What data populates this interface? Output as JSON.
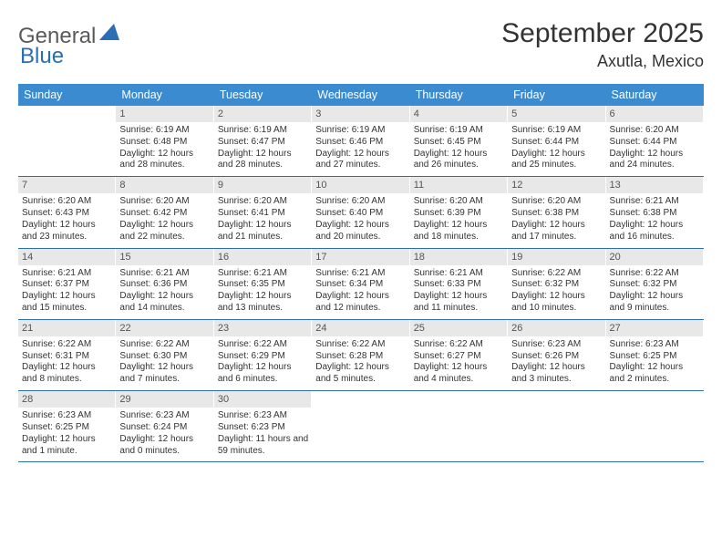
{
  "logo": {
    "general": "General",
    "blue": "Blue"
  },
  "header": {
    "month_title": "September 2025",
    "location": "Axutla, Mexico"
  },
  "colors": {
    "header_bg": "#3b8bd0",
    "header_text": "#ffffff",
    "daybar_bg": "#e8e8e8",
    "row_border": "#2f6fa8",
    "text": "#333333",
    "logo_gray": "#5a5a5a",
    "logo_blue": "#2a6fb5"
  },
  "weekdays": [
    "Sunday",
    "Monday",
    "Tuesday",
    "Wednesday",
    "Thursday",
    "Friday",
    "Saturday"
  ],
  "weeks": [
    [
      {
        "empty": true
      },
      {
        "day": "1",
        "sunrise": "Sunrise: 6:19 AM",
        "sunset": "Sunset: 6:48 PM",
        "daylight": "Daylight: 12 hours and 28 minutes."
      },
      {
        "day": "2",
        "sunrise": "Sunrise: 6:19 AM",
        "sunset": "Sunset: 6:47 PM",
        "daylight": "Daylight: 12 hours and 28 minutes."
      },
      {
        "day": "3",
        "sunrise": "Sunrise: 6:19 AM",
        "sunset": "Sunset: 6:46 PM",
        "daylight": "Daylight: 12 hours and 27 minutes."
      },
      {
        "day": "4",
        "sunrise": "Sunrise: 6:19 AM",
        "sunset": "Sunset: 6:45 PM",
        "daylight": "Daylight: 12 hours and 26 minutes."
      },
      {
        "day": "5",
        "sunrise": "Sunrise: 6:19 AM",
        "sunset": "Sunset: 6:44 PM",
        "daylight": "Daylight: 12 hours and 25 minutes."
      },
      {
        "day": "6",
        "sunrise": "Sunrise: 6:20 AM",
        "sunset": "Sunset: 6:44 PM",
        "daylight": "Daylight: 12 hours and 24 minutes."
      }
    ],
    [
      {
        "day": "7",
        "sunrise": "Sunrise: 6:20 AM",
        "sunset": "Sunset: 6:43 PM",
        "daylight": "Daylight: 12 hours and 23 minutes."
      },
      {
        "day": "8",
        "sunrise": "Sunrise: 6:20 AM",
        "sunset": "Sunset: 6:42 PM",
        "daylight": "Daylight: 12 hours and 22 minutes."
      },
      {
        "day": "9",
        "sunrise": "Sunrise: 6:20 AM",
        "sunset": "Sunset: 6:41 PM",
        "daylight": "Daylight: 12 hours and 21 minutes."
      },
      {
        "day": "10",
        "sunrise": "Sunrise: 6:20 AM",
        "sunset": "Sunset: 6:40 PM",
        "daylight": "Daylight: 12 hours and 20 minutes."
      },
      {
        "day": "11",
        "sunrise": "Sunrise: 6:20 AM",
        "sunset": "Sunset: 6:39 PM",
        "daylight": "Daylight: 12 hours and 18 minutes."
      },
      {
        "day": "12",
        "sunrise": "Sunrise: 6:20 AM",
        "sunset": "Sunset: 6:38 PM",
        "daylight": "Daylight: 12 hours and 17 minutes."
      },
      {
        "day": "13",
        "sunrise": "Sunrise: 6:21 AM",
        "sunset": "Sunset: 6:38 PM",
        "daylight": "Daylight: 12 hours and 16 minutes."
      }
    ],
    [
      {
        "day": "14",
        "sunrise": "Sunrise: 6:21 AM",
        "sunset": "Sunset: 6:37 PM",
        "daylight": "Daylight: 12 hours and 15 minutes."
      },
      {
        "day": "15",
        "sunrise": "Sunrise: 6:21 AM",
        "sunset": "Sunset: 6:36 PM",
        "daylight": "Daylight: 12 hours and 14 minutes."
      },
      {
        "day": "16",
        "sunrise": "Sunrise: 6:21 AM",
        "sunset": "Sunset: 6:35 PM",
        "daylight": "Daylight: 12 hours and 13 minutes."
      },
      {
        "day": "17",
        "sunrise": "Sunrise: 6:21 AM",
        "sunset": "Sunset: 6:34 PM",
        "daylight": "Daylight: 12 hours and 12 minutes."
      },
      {
        "day": "18",
        "sunrise": "Sunrise: 6:21 AM",
        "sunset": "Sunset: 6:33 PM",
        "daylight": "Daylight: 12 hours and 11 minutes."
      },
      {
        "day": "19",
        "sunrise": "Sunrise: 6:22 AM",
        "sunset": "Sunset: 6:32 PM",
        "daylight": "Daylight: 12 hours and 10 minutes."
      },
      {
        "day": "20",
        "sunrise": "Sunrise: 6:22 AM",
        "sunset": "Sunset: 6:32 PM",
        "daylight": "Daylight: 12 hours and 9 minutes."
      }
    ],
    [
      {
        "day": "21",
        "sunrise": "Sunrise: 6:22 AM",
        "sunset": "Sunset: 6:31 PM",
        "daylight": "Daylight: 12 hours and 8 minutes."
      },
      {
        "day": "22",
        "sunrise": "Sunrise: 6:22 AM",
        "sunset": "Sunset: 6:30 PM",
        "daylight": "Daylight: 12 hours and 7 minutes."
      },
      {
        "day": "23",
        "sunrise": "Sunrise: 6:22 AM",
        "sunset": "Sunset: 6:29 PM",
        "daylight": "Daylight: 12 hours and 6 minutes."
      },
      {
        "day": "24",
        "sunrise": "Sunrise: 6:22 AM",
        "sunset": "Sunset: 6:28 PM",
        "daylight": "Daylight: 12 hours and 5 minutes."
      },
      {
        "day": "25",
        "sunrise": "Sunrise: 6:22 AM",
        "sunset": "Sunset: 6:27 PM",
        "daylight": "Daylight: 12 hours and 4 minutes."
      },
      {
        "day": "26",
        "sunrise": "Sunrise: 6:23 AM",
        "sunset": "Sunset: 6:26 PM",
        "daylight": "Daylight: 12 hours and 3 minutes."
      },
      {
        "day": "27",
        "sunrise": "Sunrise: 6:23 AM",
        "sunset": "Sunset: 6:25 PM",
        "daylight": "Daylight: 12 hours and 2 minutes."
      }
    ],
    [
      {
        "day": "28",
        "sunrise": "Sunrise: 6:23 AM",
        "sunset": "Sunset: 6:25 PM",
        "daylight": "Daylight: 12 hours and 1 minute."
      },
      {
        "day": "29",
        "sunrise": "Sunrise: 6:23 AM",
        "sunset": "Sunset: 6:24 PM",
        "daylight": "Daylight: 12 hours and 0 minutes."
      },
      {
        "day": "30",
        "sunrise": "Sunrise: 6:23 AM",
        "sunset": "Sunset: 6:23 PM",
        "daylight": "Daylight: 11 hours and 59 minutes."
      },
      {
        "empty": true
      },
      {
        "empty": true
      },
      {
        "empty": true
      },
      {
        "empty": true
      }
    ]
  ]
}
